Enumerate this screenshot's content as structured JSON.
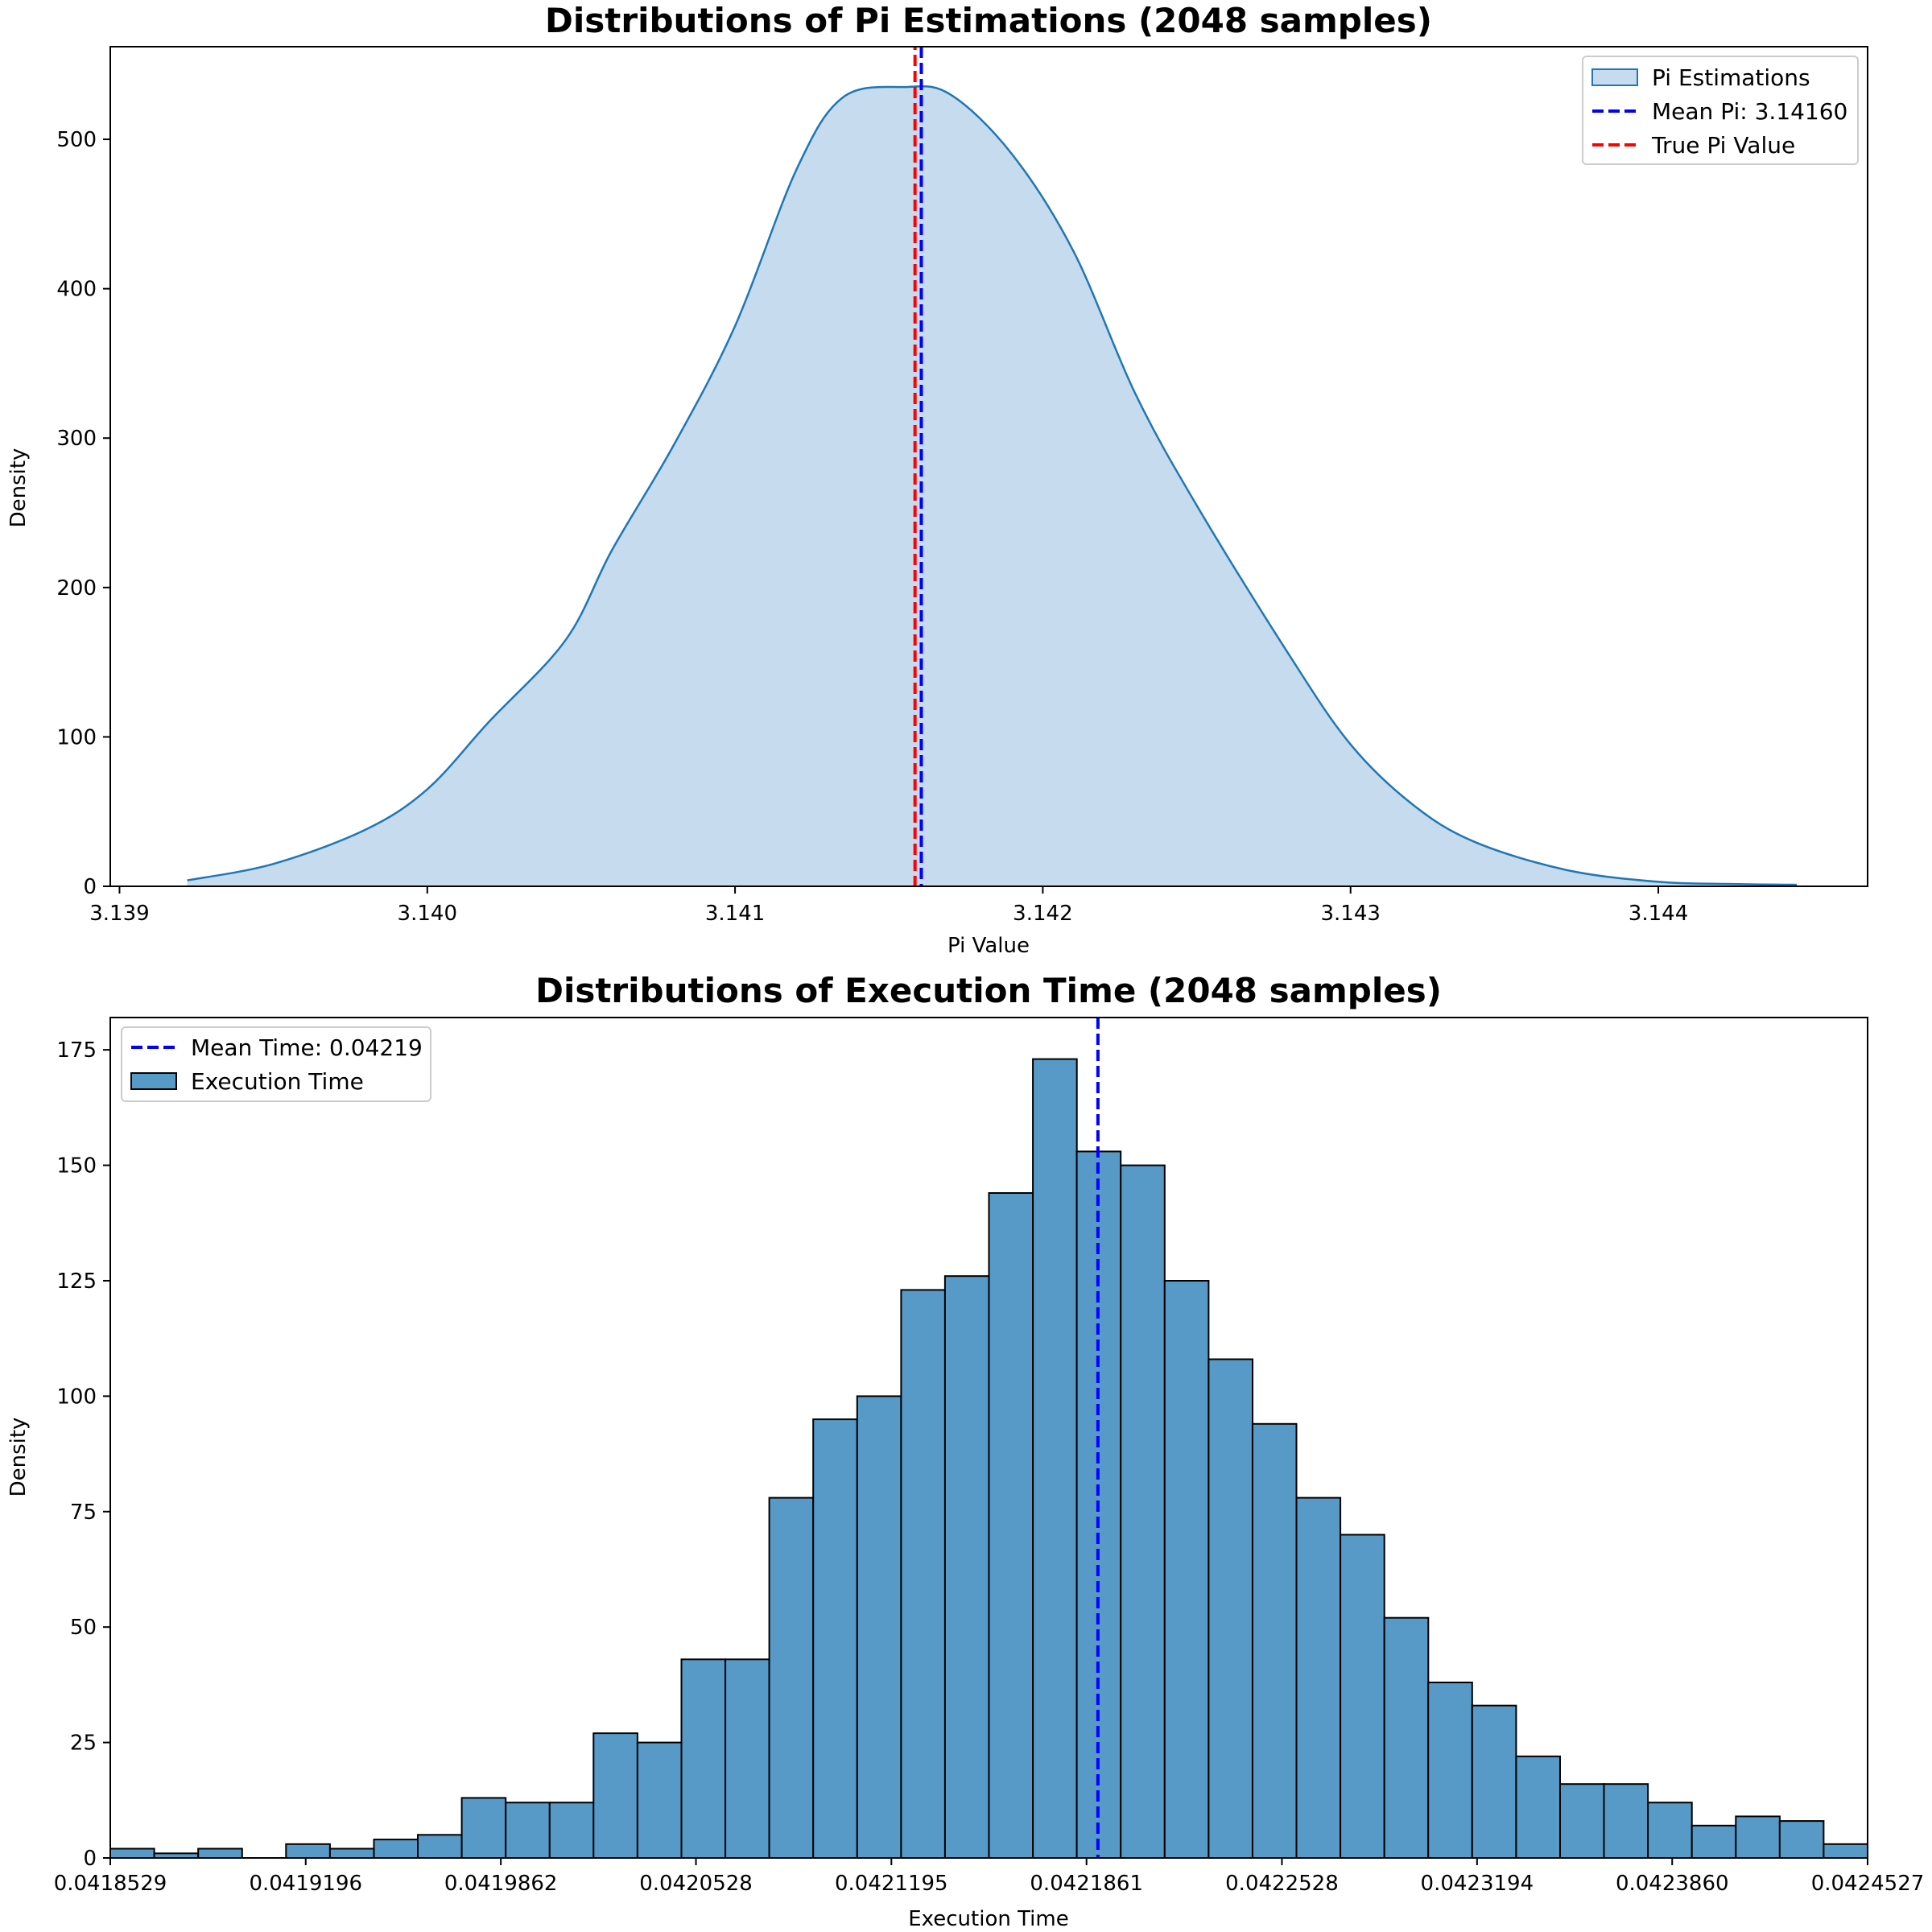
{
  "chart_data": [
    {
      "type": "area",
      "title": "Distributions of Pi Estimations (2048 samples)",
      "xlabel": "Pi Value",
      "ylabel": "Density",
      "xlim": [
        3.13897,
        3.14468
      ],
      "ylim": [
        0,
        562
      ],
      "xticks": [
        3.139,
        3.14,
        3.141,
        3.142,
        3.143,
        3.144
      ],
      "xtick_labels": [
        "3.139",
        "3.140",
        "3.141",
        "3.142",
        "3.143",
        "3.144"
      ],
      "yticks": [
        0,
        100,
        200,
        300,
        400,
        500
      ],
      "ytick_labels": [
        "0",
        "100",
        "200",
        "300",
        "400",
        "500"
      ],
      "grid": false,
      "legend_position": "top-right",
      "series": [
        {
          "name": "Pi Estimations",
          "kind": "kde",
          "color": "#1f77b4",
          "fill": "#c6dbed",
          "x": [
            3.13922,
            3.1395,
            3.1398,
            3.14,
            3.1402,
            3.14045,
            3.1406,
            3.1408,
            3.141,
            3.1412,
            3.14135,
            3.14155,
            3.1417,
            3.1419,
            3.1421,
            3.1423,
            3.1425,
            3.1428,
            3.143,
            3.1432,
            3.1434,
            3.1437,
            3.144,
            3.14425,
            3.14445
          ],
          "y": [
            4,
            15,
            38,
            65,
            110,
            165,
            225,
            295,
            375,
            480,
            528,
            535,
            530,
            490,
            425,
            330,
            255,
            155,
            95,
            55,
            30,
            11,
            3,
            1.5,
            1
          ]
        },
        {
          "name": "Mean Pi: 3.14160",
          "kind": "vline",
          "x": 3.1416,
          "color": "#0000ff",
          "style": "dashed"
        },
        {
          "name": "True Pi Value",
          "kind": "vline",
          "x": 3.14159,
          "color": "#ff0000",
          "style": "dashed"
        }
      ],
      "legend": [
        {
          "label": "Pi Estimations",
          "kind": "patch",
          "color": "#c6dbed",
          "edge": "#1f77b4"
        },
        {
          "label": "Mean Pi: 3.14160",
          "kind": "line",
          "color": "#0000ff"
        },
        {
          "label": "True Pi Value",
          "kind": "line",
          "color": "#ff0000"
        }
      ]
    },
    {
      "type": "bar",
      "title": "Distributions of Execution Time (2048 samples)",
      "xlabel": "Execution Time",
      "ylabel": "Density",
      "xlim": [
        0.0418529,
        0.0424527
      ],
      "ylim": [
        0,
        182
      ],
      "xticks": [
        0.0418529,
        0.0419196,
        0.0419862,
        0.0420528,
        0.0421195,
        0.0421861,
        0.0422528,
        0.0423194,
        0.042386,
        0.0424527
      ],
      "xtick_labels": [
        "0.0418529",
        "0.0419196",
        "0.0419862",
        "0.0420528",
        "0.0421195",
        "0.0421861",
        "0.0422528",
        "0.0423194",
        "0.0423860",
        "0.0424527"
      ],
      "yticks": [
        0,
        25,
        50,
        75,
        100,
        125,
        150,
        175
      ],
      "ytick_labels": [
        "0",
        "25",
        "50",
        "75",
        "100",
        "125",
        "150",
        "175"
      ],
      "grid": false,
      "legend_position": "top-left",
      "bin_edges_range": [
        0.0418529,
        0.0424527
      ],
      "values": [
        2,
        1,
        2,
        0,
        3,
        2,
        4,
        5,
        13,
        12,
        12,
        27,
        25,
        43,
        43,
        78,
        95,
        100,
        123,
        126,
        144,
        173,
        153,
        150,
        125,
        108,
        94,
        78,
        70,
        52,
        38,
        33,
        22,
        16,
        16,
        12,
        7,
        9,
        8,
        3
      ],
      "bar_color": "#5799c7",
      "bar_edge": "#000000",
      "mean_line": {
        "x": 0.04219,
        "color": "#0000ff",
        "style": "dashed"
      },
      "legend": [
        {
          "label": "Mean Time: 0.04219",
          "kind": "line",
          "color": "#0000ff"
        },
        {
          "label": "Execution Time",
          "kind": "patch",
          "color": "#5799c7",
          "edge": "#000000"
        }
      ]
    }
  ]
}
